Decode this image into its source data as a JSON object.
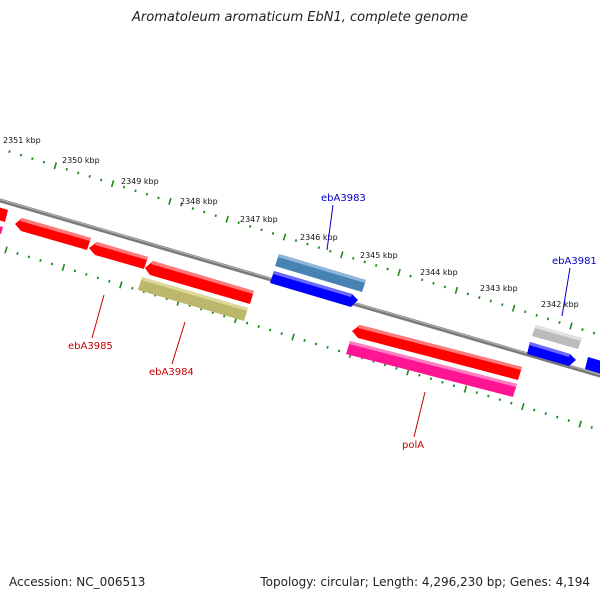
{
  "title": "Aromatoleum aromaticum EbN1, complete genome",
  "footer": {
    "accession": "Accession: NC_006513",
    "summary": "Topology: circular; Length: 4,296,230 bp; Genes: 4,194"
  },
  "ruler_labels": [
    "2351 kbp",
    "2350 kbp",
    "2349 kbp",
    "2348 kbp",
    "2347 kbp",
    "2346 kbp",
    "2345 kbp",
    "2344 kbp",
    "2343 kbp",
    "2342 kbp"
  ],
  "gene_labels": {
    "ebA3983": "ebA3983",
    "ebA3981": "ebA3981",
    "ebA3985": "ebA3985",
    "ebA3984": "ebA3984",
    "polA": "polA"
  },
  "colors": {
    "backbone": "#808080",
    "tick": "#1a8a1a",
    "red": "#ff0000",
    "blue": "#0000ff",
    "steelblue": "#4682b4",
    "khaki": "#bdb76b",
    "pink": "#ff1493",
    "grey": "#bbbbbb",
    "label_blue": "#0000c8",
    "label_red": "#c80000"
  }
}
